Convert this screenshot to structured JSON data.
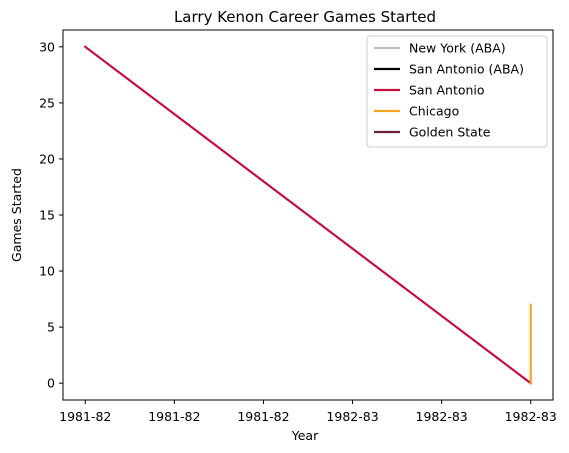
{
  "chart_data": {
    "type": "line",
    "title": "Larry Kenon Career Games Started",
    "xlabel": "Year",
    "ylabel": "Games Started",
    "x_ticks": [
      "1981-82",
      "1981-82",
      "1981-82",
      "1982-83",
      "1982-83",
      "1982-83"
    ],
    "y_ticks": [
      "0",
      "5",
      "10",
      "15",
      "20",
      "25",
      "30"
    ],
    "ylim": [
      -1.5,
      31.5
    ],
    "xlim": [
      -0.05,
      1.05
    ],
    "legend_position": "top-right",
    "grid": false,
    "series": [
      {
        "name": "New York (ABA)",
        "color": "#c0c0c0",
        "points": []
      },
      {
        "name": "San Antonio (ABA)",
        "color": "#000000",
        "points": []
      },
      {
        "name": "San Antonio",
        "color": "#c4103e",
        "points": [
          [
            0,
            30
          ],
          [
            1,
            0
          ]
        ]
      },
      {
        "name": "Chicago",
        "color": "#f5a623",
        "points": [
          [
            1,
            0
          ],
          [
            1,
            7
          ]
        ]
      },
      {
        "name": "Golden State",
        "color": "#6b1f3a",
        "points": []
      }
    ]
  }
}
